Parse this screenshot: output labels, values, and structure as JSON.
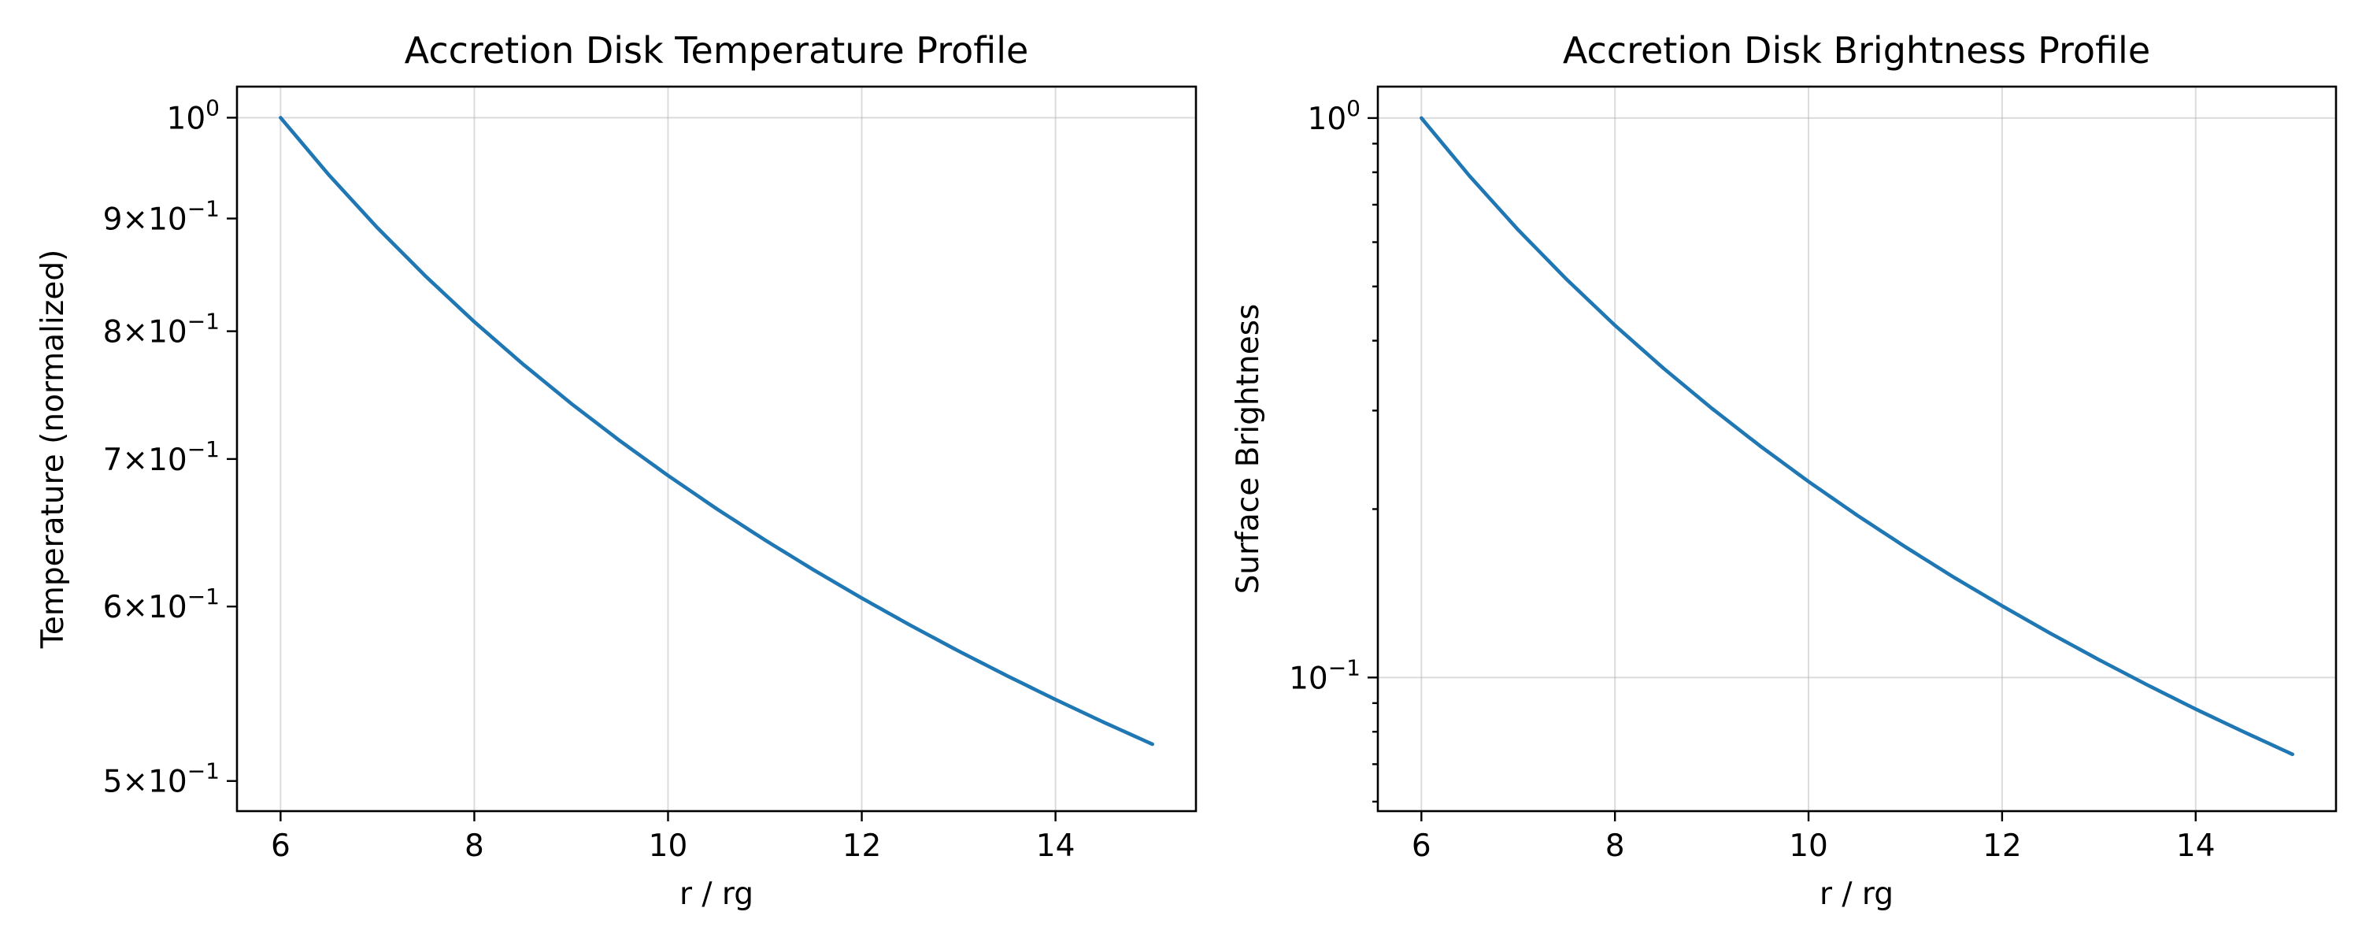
{
  "style": {
    "line_color": "#1f77b4",
    "grid": true
  },
  "chart_data": [
    {
      "type": "line",
      "title": "Accretion Disk Temperature Profile",
      "xlabel": "r / rg",
      "ylabel": "Temperature (normalized)",
      "xscale": "linear",
      "yscale": "log",
      "xlim": [
        5.55,
        15.45
      ],
      "ylim": [
        0.4845,
        1.033
      ],
      "x_ticks": [
        6,
        8,
        10,
        12,
        14
      ],
      "y_ticks": [
        {
          "value": 1.0,
          "mantissa": "",
          "base": "10",
          "exp": "0"
        },
        {
          "value": 0.9,
          "mantissa": "9",
          "base": "10",
          "exp": "−1"
        },
        {
          "value": 0.8,
          "mantissa": "8",
          "base": "10",
          "exp": "−1"
        },
        {
          "value": 0.7,
          "mantissa": "7",
          "base": "10",
          "exp": "−1"
        },
        {
          "value": 0.6,
          "mantissa": "6",
          "base": "10",
          "exp": "−1"
        },
        {
          "value": 0.5,
          "mantissa": "5",
          "base": "10",
          "exp": "−1"
        }
      ],
      "y_grid": [
        1.0
      ],
      "series": [
        {
          "x": [
            6,
            6.5,
            7,
            7.5,
            8,
            8.5,
            9,
            9.5,
            10,
            10.5,
            11,
            11.5,
            12,
            12.5,
            13,
            13.5,
            14,
            14.5,
            15
          ],
          "y": [
            1.0,
            0.9418,
            0.8913,
            0.8471,
            0.8079,
            0.7731,
            0.7418,
            0.7136,
            0.688,
            0.6646,
            0.6432,
            0.6235,
            0.6053,
            0.5884,
            0.5727,
            0.5581,
            0.5444,
            0.5316,
            0.5196
          ]
        }
      ]
    },
    {
      "type": "line",
      "title": "Accretion Disk Brightness Profile",
      "xlabel": "r / rg",
      "ylabel": "Surface Brightness",
      "xscale": "linear",
      "yscale": "log",
      "xlim": [
        5.55,
        15.45
      ],
      "ylim": [
        0.0577,
        1.138
      ],
      "x_ticks": [
        6,
        8,
        10,
        12,
        14
      ],
      "y_ticks": [
        {
          "value": 1.0,
          "mantissa": "",
          "base": "10",
          "exp": "0"
        },
        {
          "value": 0.1,
          "mantissa": "",
          "base": "10",
          "exp": "−1"
        }
      ],
      "y_minor_ticks": [
        0.2,
        0.3,
        0.4,
        0.5,
        0.6,
        0.7,
        0.8,
        0.9,
        0.06,
        0.07,
        0.08,
        0.09
      ],
      "y_grid": [
        1.0,
        0.1
      ],
      "series": [
        {
          "x": [
            6,
            6.5,
            7,
            7.5,
            8,
            8.5,
            9,
            9.5,
            10,
            10.5,
            11,
            11.5,
            12,
            12.5,
            13,
            13.5,
            14,
            14.5,
            15
          ],
          "y": [
            1.0,
            0.7869,
            0.6311,
            0.5149,
            0.426,
            0.3572,
            0.3028,
            0.2593,
            0.224,
            0.1951,
            0.1712,
            0.1511,
            0.1343,
            0.1199,
            0.1076,
            0.097,
            0.0878,
            0.0799,
            0.0729
          ]
        }
      ]
    }
  ]
}
